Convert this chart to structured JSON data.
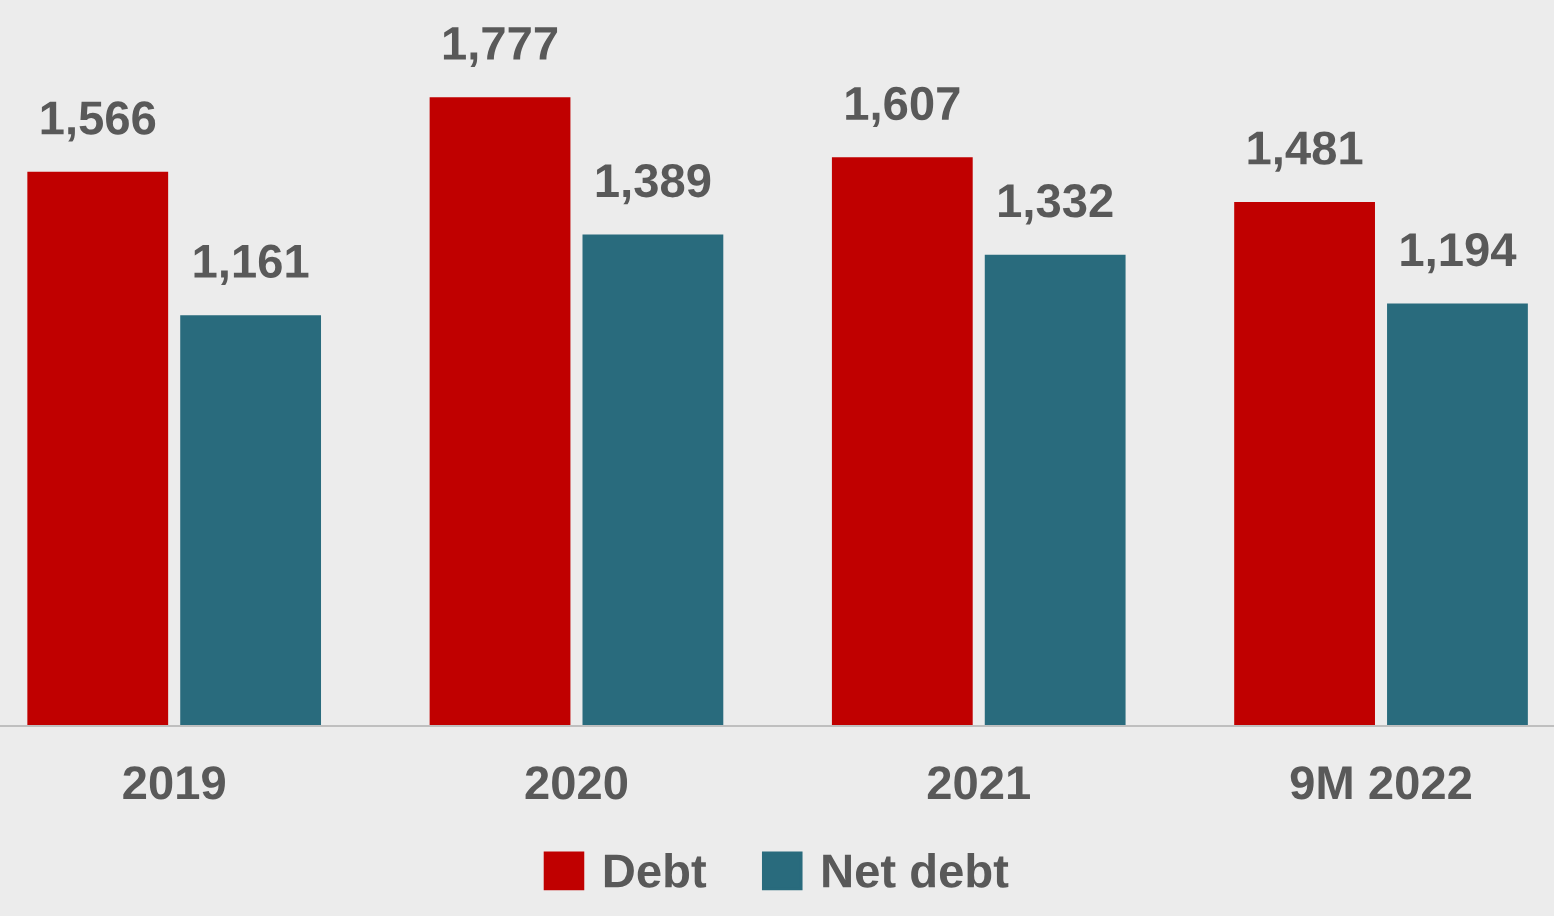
{
  "chart_data": {
    "type": "bar",
    "categories": [
      "2019",
      "2020",
      "2021",
      "9M 2022"
    ],
    "series": [
      {
        "name": "Debt",
        "color": "#c00000",
        "values": [
          1566,
          1777,
          1607,
          1481
        ],
        "value_labels": [
          "1,566",
          "1,777",
          "1,607",
          "1,481"
        ]
      },
      {
        "name": "Net debt",
        "color": "#296b7d",
        "values": [
          1161,
          1389,
          1332,
          1194
        ],
        "value_labels": [
          "1,161",
          "1,389",
          "1,332",
          "1,194"
        ]
      }
    ],
    "legend": "bottom",
    "tick_labels": "x",
    "grid": false
  }
}
